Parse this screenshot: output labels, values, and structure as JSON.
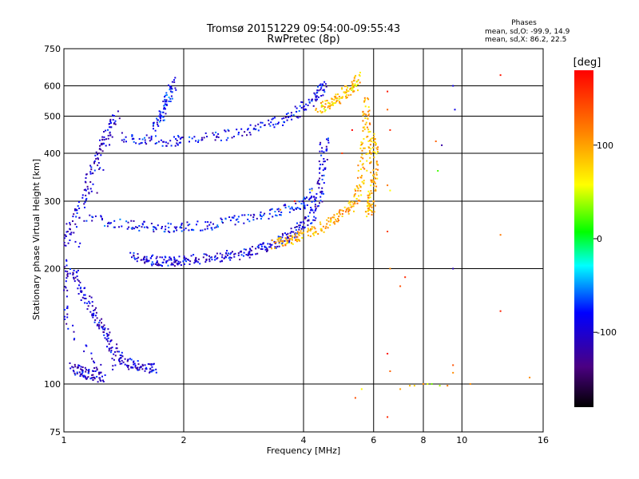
{
  "chart_data": {
    "type": "scatter",
    "title": "Tromsø 20151229 09:54:00-09:55:43",
    "subtitle": "RwPretec (8p)",
    "xlabel": "Frequency [MHz]",
    "ylabel": "Stationary phase Virtual Height [km]",
    "x_scale": "log",
    "y_scale": "log",
    "xlim": [
      1,
      16
    ],
    "ylim": [
      75,
      750
    ],
    "x_ticks": [
      1,
      2,
      4,
      6,
      8,
      10,
      16
    ],
    "y_ticks": [
      75,
      100,
      200,
      300,
      400,
      500,
      600,
      750
    ],
    "grid": true,
    "stats": {
      "heading": "Phases",
      "line_o": "mean, sd,O: -99.9, 14.9",
      "line_x": "mean, sd,X:  86.2, 22.5"
    },
    "colorbar": {
      "label": "[deg]",
      "ticks": [
        100,
        0,
        -100
      ],
      "range": [
        -180,
        180
      ]
    },
    "traces": [
      {
        "name_hint": "o-trace F2 (blue)",
        "phase": -95,
        "points": [
          [
            1.5,
            215
          ],
          [
            1.6,
            212
          ],
          [
            1.7,
            210
          ],
          [
            1.8,
            209
          ],
          [
            1.9,
            209
          ],
          [
            2.0,
            210
          ],
          [
            2.2,
            212
          ],
          [
            2.4,
            214
          ],
          [
            2.6,
            216
          ],
          [
            2.8,
            219
          ],
          [
            3.0,
            223
          ],
          [
            3.2,
            228
          ],
          [
            3.4,
            234
          ],
          [
            3.6,
            241
          ],
          [
            3.8,
            249
          ],
          [
            4.0,
            260
          ],
          [
            4.2,
            275
          ],
          [
            4.35,
            300
          ],
          [
            4.45,
            340
          ],
          [
            4.5,
            390
          ],
          [
            4.52,
            440
          ]
        ]
      },
      {
        "name_hint": "o-trace F2 upper",
        "phase": -85,
        "points": [
          [
            1.2,
            270
          ],
          [
            1.4,
            262
          ],
          [
            1.6,
            258
          ],
          [
            1.8,
            255
          ],
          [
            2.0,
            256
          ],
          [
            2.3,
            260
          ],
          [
            2.6,
            266
          ],
          [
            3.0,
            274
          ],
          [
            3.4,
            280
          ],
          [
            3.8,
            290
          ],
          [
            4.1,
            300
          ],
          [
            4.3,
            320
          ]
        ]
      },
      {
        "name_hint": "multiple echo",
        "phase": -90,
        "points": [
          [
            1.4,
            440
          ],
          [
            1.6,
            435
          ],
          [
            1.8,
            430
          ],
          [
            2.0,
            432
          ],
          [
            2.4,
            440
          ],
          [
            2.8,
            455
          ],
          [
            3.2,
            470
          ],
          [
            3.6,
            490
          ],
          [
            3.9,
            515
          ],
          [
            4.2,
            545
          ],
          [
            4.4,
            575
          ],
          [
            4.5,
            610
          ]
        ]
      },
      {
        "name_hint": "x-trace F2 (yellow)",
        "phase": 95,
        "points": [
          [
            3.4,
            232
          ],
          [
            3.6,
            236
          ],
          [
            3.8,
            240
          ],
          [
            4.0,
            245
          ],
          [
            4.3,
            252
          ],
          [
            4.6,
            262
          ],
          [
            4.9,
            272
          ],
          [
            5.2,
            285
          ],
          [
            5.4,
            300
          ],
          [
            5.55,
            330
          ],
          [
            5.65,
            380
          ],
          [
            5.72,
            440
          ],
          [
            5.76,
            500
          ],
          [
            5.8,
            560
          ]
        ]
      },
      {
        "name_hint": "x-trace lower",
        "phase": 90,
        "points": [
          [
            5.8,
            280
          ],
          [
            5.9,
            290
          ],
          [
            5.95,
            310
          ],
          [
            6.0,
            340
          ],
          [
            6.0,
            380
          ],
          [
            6.0,
            420
          ],
          [
            5.95,
            450
          ]
        ]
      },
      {
        "name_hint": "x multiple",
        "phase": 80,
        "points": [
          [
            4.4,
            520
          ],
          [
            4.6,
            535
          ],
          [
            4.8,
            550
          ],
          [
            5.0,
            565
          ],
          [
            5.2,
            585
          ],
          [
            5.4,
            605
          ],
          [
            5.5,
            640
          ]
        ]
      },
      {
        "name_hint": "near-field spread",
        "phase": -100,
        "points": [
          [
            1.0,
            230
          ],
          [
            1.05,
            260
          ],
          [
            1.1,
            290
          ],
          [
            1.15,
            330
          ],
          [
            1.2,
            380
          ],
          [
            1.25,
            420
          ],
          [
            1.3,
            460
          ],
          [
            1.35,
            500
          ],
          [
            1.05,
            200
          ],
          [
            1.1,
            180
          ],
          [
            1.15,
            165
          ],
          [
            1.2,
            150
          ],
          [
            1.25,
            140
          ],
          [
            1.3,
            130
          ],
          [
            1.35,
            120
          ],
          [
            1.4,
            115
          ],
          [
            1.5,
            112
          ],
          [
            1.6,
            110
          ],
          [
            1.7,
            110
          ],
          [
            1.05,
            110
          ],
          [
            1.1,
            108
          ],
          [
            1.15,
            106
          ],
          [
            1.2,
            105
          ],
          [
            1.25,
            104
          ],
          [
            1.0,
            150
          ],
          [
            1.0,
            170
          ],
          [
            1.0,
            190
          ],
          [
            1.0,
            210
          ]
        ]
      },
      {
        "name_hint": "sporadic F trace",
        "phase": -80,
        "points": [
          [
            1.7,
            470
          ],
          [
            1.75,
            500
          ],
          [
            1.8,
            540
          ],
          [
            1.85,
            580
          ],
          [
            1.9,
            620
          ]
        ]
      }
    ],
    "sparse_points": [
      [
        6.5,
        580,
        170
      ],
      [
        6.5,
        520,
        130
      ],
      [
        6.6,
        460,
        160
      ],
      [
        6.5,
        330,
        120
      ],
      [
        6.6,
        320,
        60
      ],
      [
        6.5,
        250,
        150
      ],
      [
        6.6,
        200,
        110
      ],
      [
        6.5,
        120,
        175
      ],
      [
        6.6,
        108,
        130
      ],
      [
        6.5,
        82,
        160
      ],
      [
        7.0,
        180,
        140
      ],
      [
        7.2,
        190,
        160
      ],
      [
        7.0,
        97,
        100
      ],
      [
        7.4,
        99,
        90
      ],
      [
        7.6,
        99,
        80
      ],
      [
        8.0,
        100,
        110
      ],
      [
        8.2,
        100,
        50
      ],
      [
        8.4,
        100,
        30
      ],
      [
        8.8,
        99,
        40
      ],
      [
        9.2,
        99,
        120
      ],
      [
        9.5,
        112,
        140
      ],
      [
        9.5,
        107,
        110
      ],
      [
        9.5,
        600,
        -90
      ],
      [
        9.6,
        520,
        -90
      ],
      [
        8.9,
        420,
        -120
      ],
      [
        8.6,
        430,
        130
      ],
      [
        8.7,
        360,
        20
      ],
      [
        9.5,
        200,
        -110
      ],
      [
        10.5,
        100,
        110
      ],
      [
        12.5,
        640,
        170
      ],
      [
        12.5,
        245,
        120
      ],
      [
        12.5,
        155,
        165
      ],
      [
        14.8,
        104,
        110
      ],
      [
        5.4,
        92,
        140
      ],
      [
        5.6,
        97,
        60
      ],
      [
        3.5,
        285,
        120
      ],
      [
        3.8,
        300,
        170
      ],
      [
        4.2,
        320,
        70
      ],
      [
        5.0,
        400,
        150
      ],
      [
        5.3,
        460,
        180
      ]
    ]
  }
}
